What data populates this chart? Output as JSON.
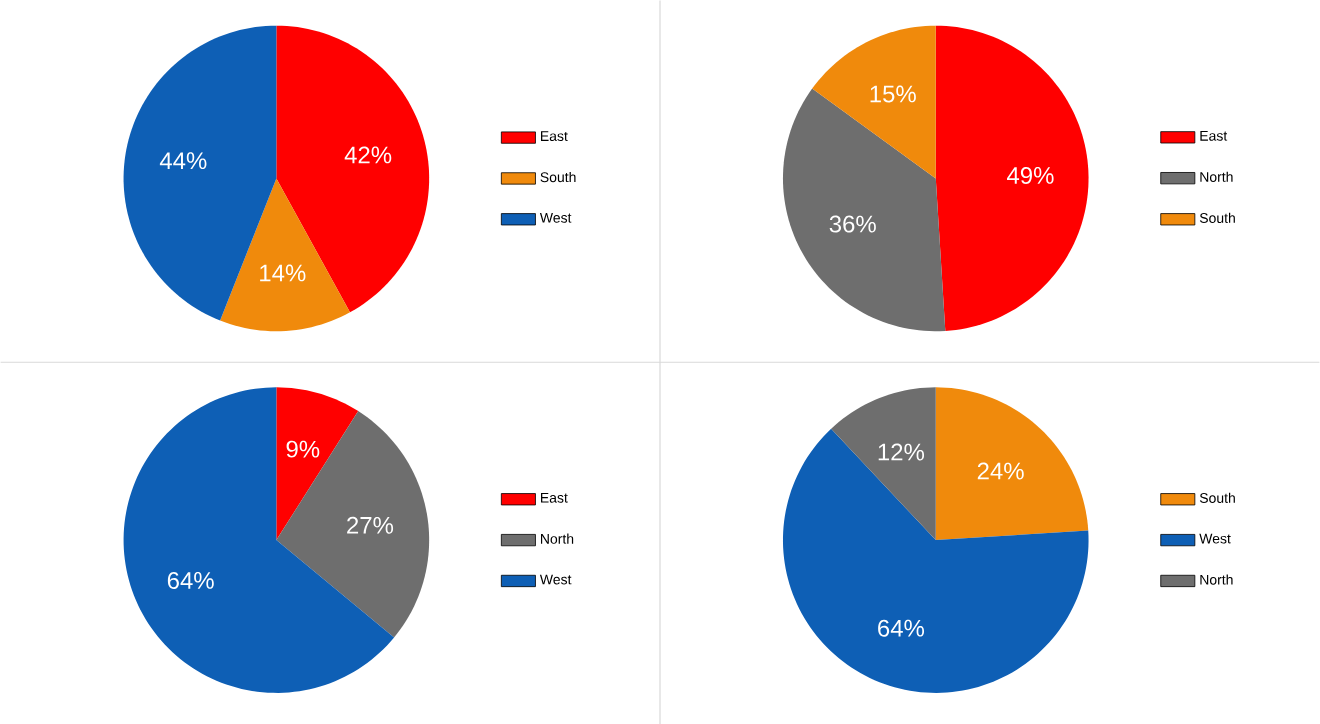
{
  "chart_data": [
    {
      "type": "pie",
      "categories": [
        "East",
        "South",
        "West"
      ],
      "values": [
        42,
        14,
        44
      ],
      "value_labels": [
        "42%",
        "14%",
        "44%"
      ],
      "colors": [
        "#ff0000",
        "#f08a0c",
        "#0e5fb5"
      ],
      "legend": "right"
    },
    {
      "type": "pie",
      "categories": [
        "East",
        "North",
        "South"
      ],
      "values": [
        49,
        36,
        15
      ],
      "value_labels": [
        "49%",
        "36%",
        "15%"
      ],
      "colors": [
        "#ff0000",
        "#6e6e6e",
        "#f08a0c"
      ],
      "legend": "right"
    },
    {
      "type": "pie",
      "categories": [
        "East",
        "North",
        "West"
      ],
      "values": [
        9,
        27,
        64
      ],
      "value_labels": [
        "9%",
        "27%",
        "64%"
      ],
      "colors": [
        "#ff0000",
        "#6e6e6e",
        "#0e5fb5"
      ],
      "legend": "right"
    },
    {
      "type": "pie",
      "categories": [
        "South",
        "West",
        "North"
      ],
      "values": [
        24,
        64,
        12
      ],
      "value_labels": [
        "24%",
        "64%",
        "12%"
      ],
      "colors": [
        "#f08a0c",
        "#0e5fb5",
        "#6e6e6e"
      ],
      "legend": "right"
    }
  ]
}
